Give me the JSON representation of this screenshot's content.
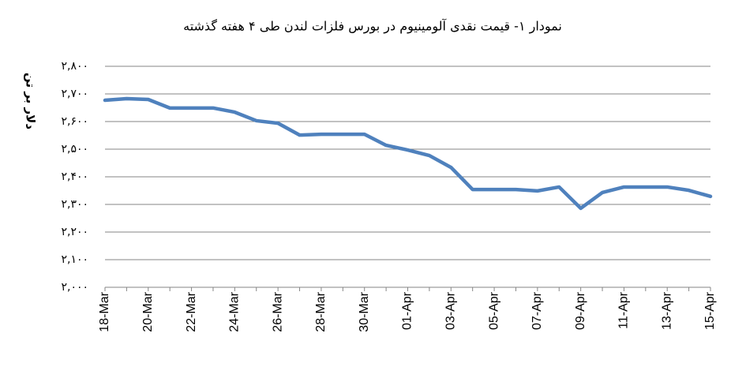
{
  "chart_data": {
    "type": "line",
    "title": "نمودار ۱- قیمت نقدی آلومینیوم در بورس فلزات لندن طی ۴ هفته گذشته",
    "y_label": "دلار بر تن",
    "categories": [
      "18-Mar",
      null,
      "20-Mar",
      null,
      "22-Mar",
      null,
      "24-Mar",
      null,
      "26-Mar",
      null,
      "28-Mar",
      null,
      "30-Mar",
      null,
      "01-Apr",
      null,
      "03-Apr",
      null,
      "05-Apr",
      null,
      "07-Apr",
      null,
      "09-Apr",
      null,
      "11-Apr",
      null,
      "13-Apr",
      null,
      "15-Apr"
    ],
    "values": [
      2677,
      2683,
      2680,
      2649,
      2649,
      2649,
      2634,
      2603,
      2594,
      2551,
      2554,
      2554,
      2554,
      2514,
      2497,
      2477,
      2434,
      2354,
      2354,
      2354,
      2349,
      2363,
      2286,
      2343,
      2363,
      2363,
      2363,
      2351,
      2329
    ],
    "color": "#4f81bd",
    "ylim": [
      2000,
      2800
    ],
    "yticks": [
      {
        "value": 2000,
        "label": "۲,۰۰۰"
      },
      {
        "value": 2100,
        "label": "۲,۱۰۰"
      },
      {
        "value": 2200,
        "label": "۲,۲۰۰"
      },
      {
        "value": 2300,
        "label": "۲,۳۰۰"
      },
      {
        "value": 2400,
        "label": "۲,۴۰۰"
      },
      {
        "value": 2500,
        "label": "۲,۵۰۰"
      },
      {
        "value": 2600,
        "label": "۲,۶۰۰"
      },
      {
        "value": 2700,
        "label": "۲,۷۰۰"
      },
      {
        "value": 2800,
        "label": "۲,۸۰۰"
      }
    ],
    "grid": true
  }
}
